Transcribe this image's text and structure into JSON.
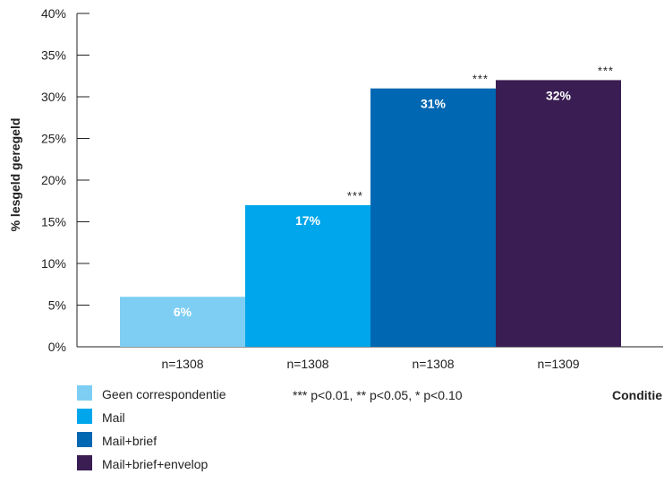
{
  "chart_data": {
    "type": "bar",
    "categories": [
      "Geen correspondentie",
      "Mail",
      "Mail+brief",
      "Mail+brief+envelop"
    ],
    "values": [
      6,
      17,
      31,
      32
    ],
    "data_labels": [
      "6%",
      "17%",
      "31%",
      "32%"
    ],
    "sample_sizes": [
      "n=1308",
      "n=1308",
      "n=1308",
      "n=1309"
    ],
    "significance": [
      "",
      "***",
      "***",
      "***"
    ],
    "colors": [
      "#7ecef4",
      "#00a6eb",
      "#0068b3",
      "#3a1d53"
    ],
    "ylabel": "% lesgeld geregeld",
    "xlabel": "Conditie",
    "ylim": [
      0,
      40
    ],
    "yticks": [
      "0%",
      "5%",
      "10%",
      "15%",
      "20%",
      "25%",
      "30%",
      "35%",
      "40%"
    ],
    "note": "*** p<0.01, ** p<0.05, * p<0.10",
    "legend": [
      "Geen correspondentie",
      "Mail",
      "Mail+brief",
      "Mail+brief+envelop"
    ],
    "legend_placement": "bottom-left",
    "grid": false
  }
}
